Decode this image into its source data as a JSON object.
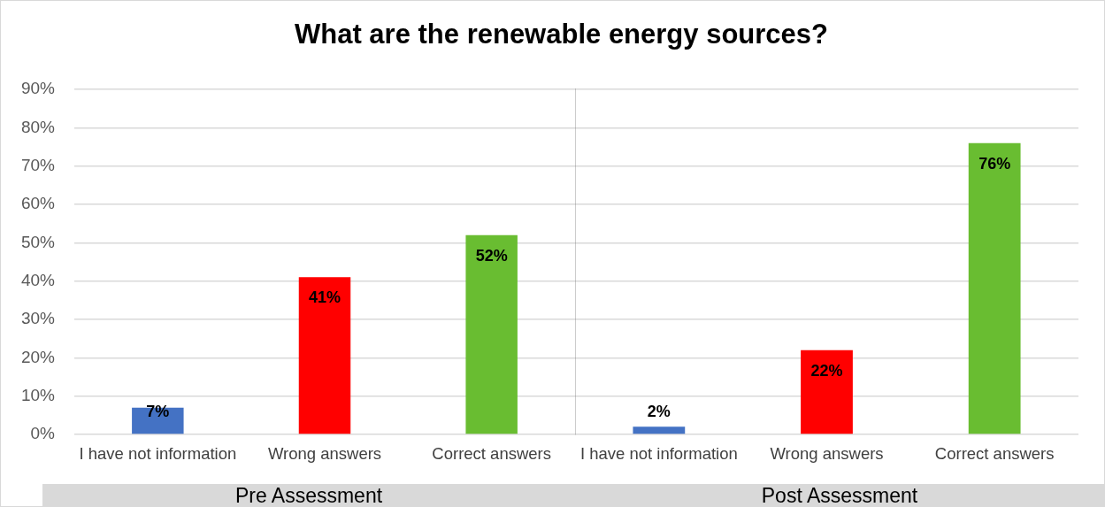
{
  "chart_data": [
    {
      "type": "bar",
      "title": "What are the renewable energy sources?",
      "xlabel": "Pre Assessment",
      "categories": [
        "I have not information",
        "Wrong answers",
        "Correct answers"
      ],
      "values": [
        7,
        41,
        52
      ],
      "colors": [
        "#4472c4",
        "#ff0000",
        "#69bd31"
      ],
      "value_labels": [
        "7%",
        "41%",
        "52%"
      ],
      "ylim": [
        0,
        90
      ],
      "yticks": [
        {
          "value": 0,
          "label": "0%"
        },
        {
          "value": 10,
          "label": "10%"
        },
        {
          "value": 20,
          "label": "20%"
        },
        {
          "value": 30,
          "label": "30%"
        },
        {
          "value": 40,
          "label": "40%"
        },
        {
          "value": 50,
          "label": "50%"
        },
        {
          "value": 60,
          "label": "60%"
        },
        {
          "value": 70,
          "label": "70%"
        },
        {
          "value": 80,
          "label": "80%"
        },
        {
          "value": 90,
          "label": "90%"
        }
      ],
      "grid": "y"
    },
    {
      "type": "bar",
      "xlabel": "Post Assessment",
      "categories": [
        "I have not information",
        "Wrong answers",
        "Correct answers"
      ],
      "values": [
        2,
        22,
        76
      ],
      "colors": [
        "#4472c4",
        "#ff0000",
        "#69bd31"
      ],
      "value_labels": [
        "2%",
        "22%",
        "76%"
      ],
      "ylim": [
        0,
        90
      ],
      "yticks": [
        {
          "value": 0,
          "label": null
        },
        {
          "value": 10,
          "label": null
        },
        {
          "value": 20,
          "label": null
        },
        {
          "value": 30,
          "label": null
        },
        {
          "value": 40,
          "label": null
        },
        {
          "value": 50,
          "label": null
        },
        {
          "value": 60,
          "label": null
        },
        {
          "value": 70,
          "label": null
        },
        {
          "value": 80,
          "label": null
        },
        {
          "value": 90,
          "label": null
        }
      ],
      "grid": "y",
      "tick_labels": "x"
    }
  ]
}
